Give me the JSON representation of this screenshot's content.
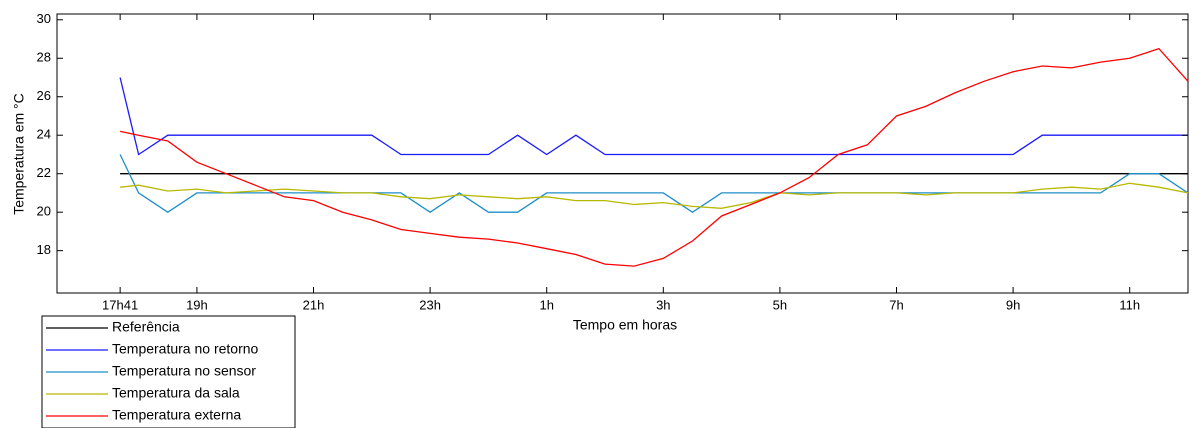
{
  "chart_data": {
    "type": "line",
    "xlabel": "Tempo em horas",
    "ylabel": "Temperatura em °C",
    "x": [
      17.683,
      18,
      18.5,
      19,
      19.5,
      20,
      20.5,
      21,
      21.5,
      22,
      22.5,
      23,
      23.5,
      24,
      24.5,
      25,
      25.5,
      26,
      26.5,
      27,
      27.5,
      28,
      28.5,
      29,
      29.5,
      30,
      30.5,
      31,
      31.5,
      32,
      32.5,
      33,
      33.5,
      34,
      34.5,
      35,
      35.5,
      36
    ],
    "xlim": [
      16.6,
      36
    ],
    "xticks": [
      {
        "value": 17.683,
        "label": "17h41"
      },
      {
        "value": 19,
        "label": "19h"
      },
      {
        "value": 21,
        "label": "21h"
      },
      {
        "value": 23,
        "label": "23h"
      },
      {
        "value": 25,
        "label": "1h"
      },
      {
        "value": 27,
        "label": "3h"
      },
      {
        "value": 29,
        "label": "5h"
      },
      {
        "value": 31,
        "label": "7h"
      },
      {
        "value": 33,
        "label": "9h"
      },
      {
        "value": 35,
        "label": "11h"
      }
    ],
    "ylim": [
      15.8,
      30.3
    ],
    "yticks": [
      18,
      20,
      22,
      24,
      26,
      28,
      30
    ],
    "series": [
      {
        "name": "Referência",
        "color": "#000000",
        "values": [
          22,
          22,
          22,
          22,
          22,
          22,
          22,
          22,
          22,
          22,
          22,
          22,
          22,
          22,
          22,
          22,
          22,
          22,
          22,
          22,
          22,
          22,
          22,
          22,
          22,
          22,
          22,
          22,
          22,
          22,
          22,
          22,
          22,
          22,
          22,
          22,
          22,
          22
        ]
      },
      {
        "name": "Temperatura no retorno",
        "color": "#1a1aff",
        "values": [
          27,
          23,
          24,
          24,
          24,
          24,
          24,
          24,
          24,
          24,
          23,
          23,
          23,
          23,
          24,
          23,
          24,
          23,
          23,
          23,
          23,
          23,
          23,
          23,
          23,
          23,
          23,
          23,
          23,
          23,
          23,
          23,
          24,
          24,
          24,
          24,
          24,
          24
        ]
      },
      {
        "name": "Temperatura no sensor",
        "color": "#1f8fc8",
        "values": [
          23,
          21,
          20,
          21,
          21,
          21,
          21,
          21,
          21,
          21,
          21,
          20,
          21,
          20,
          20,
          21,
          21,
          21,
          21,
          21,
          20,
          21,
          21,
          21,
          21,
          21,
          21,
          21,
          21,
          21,
          21,
          21,
          21,
          21,
          21,
          22,
          22,
          21
        ]
      },
      {
        "name": "Temperatura da sala",
        "color": "#b8b800",
        "values": [
          21.3,
          21.4,
          21.1,
          21.2,
          21.0,
          21.1,
          21.2,
          21.1,
          21.0,
          21.0,
          20.8,
          20.7,
          20.9,
          20.8,
          20.7,
          20.8,
          20.6,
          20.6,
          20.4,
          20.5,
          20.3,
          20.2,
          20.5,
          21.0,
          20.9,
          21.0,
          21.0,
          21.0,
          20.9,
          21.0,
          21.0,
          21.0,
          21.2,
          21.3,
          21.2,
          21.5,
          21.3,
          21.0
        ]
      },
      {
        "name": "Temperatura externa",
        "color": "#ff0000",
        "values": [
          24.2,
          24.0,
          23.7,
          22.6,
          22.0,
          21.4,
          20.8,
          20.6,
          20.0,
          19.6,
          19.1,
          18.9,
          18.7,
          18.6,
          18.4,
          18.1,
          17.8,
          17.3,
          17.2,
          17.6,
          18.5,
          19.8,
          20.4,
          21.0,
          21.8,
          23.0,
          23.5,
          25.0,
          25.5,
          26.2,
          26.8,
          27.3,
          27.6,
          27.5,
          27.8,
          28.0,
          28.5,
          26.8
        ]
      }
    ],
    "legend": "lower left"
  }
}
